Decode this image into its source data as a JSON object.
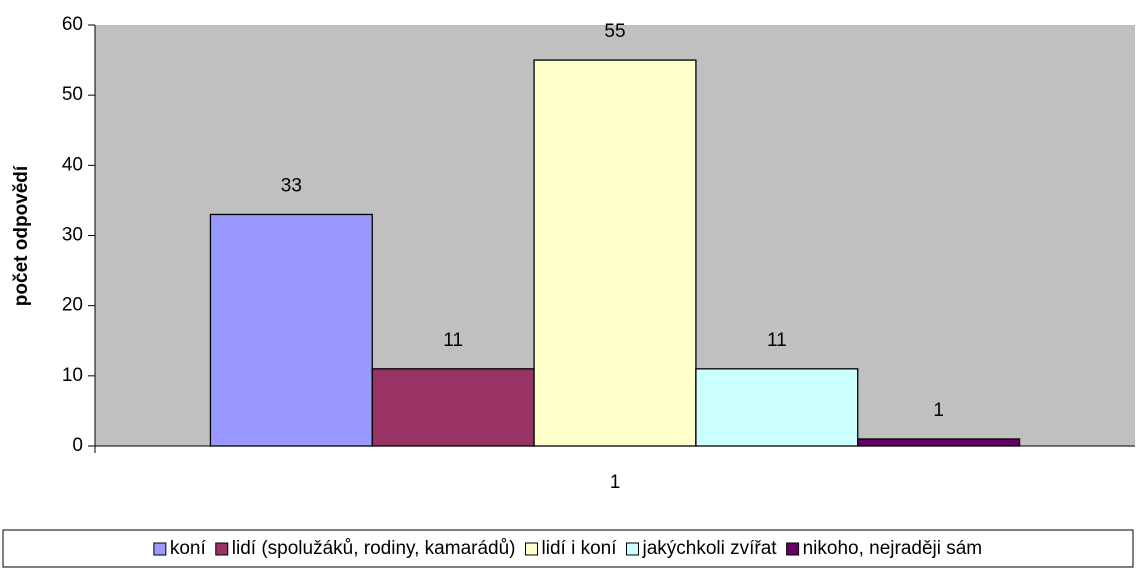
{
  "chart_data": {
    "type": "bar",
    "y_label": "počet odpovědí",
    "categories": [
      "1"
    ],
    "series": [
      {
        "name": "koní",
        "color": "#9999ff",
        "values": [
          33
        ]
      },
      {
        "name": "lidí (spolužáků, rodiny, kamarádů)",
        "color": "#993366",
        "values": [
          11
        ]
      },
      {
        "name": "lidí i koní",
        "color": "#ffffcc",
        "values": [
          55
        ]
      },
      {
        "name": "jakýchkoli zvířat",
        "color": "#ccffff",
        "values": [
          11
        ]
      },
      {
        "name": "nikoho, nejraději sám",
        "color": "#660066",
        "values": [
          1
        ]
      }
    ],
    "ylim": [
      0,
      60
    ],
    "yticks": [
      0,
      10,
      20,
      30,
      40,
      50,
      60
    ],
    "plot_background": "#c0c0c0",
    "legend": "bottom"
  }
}
